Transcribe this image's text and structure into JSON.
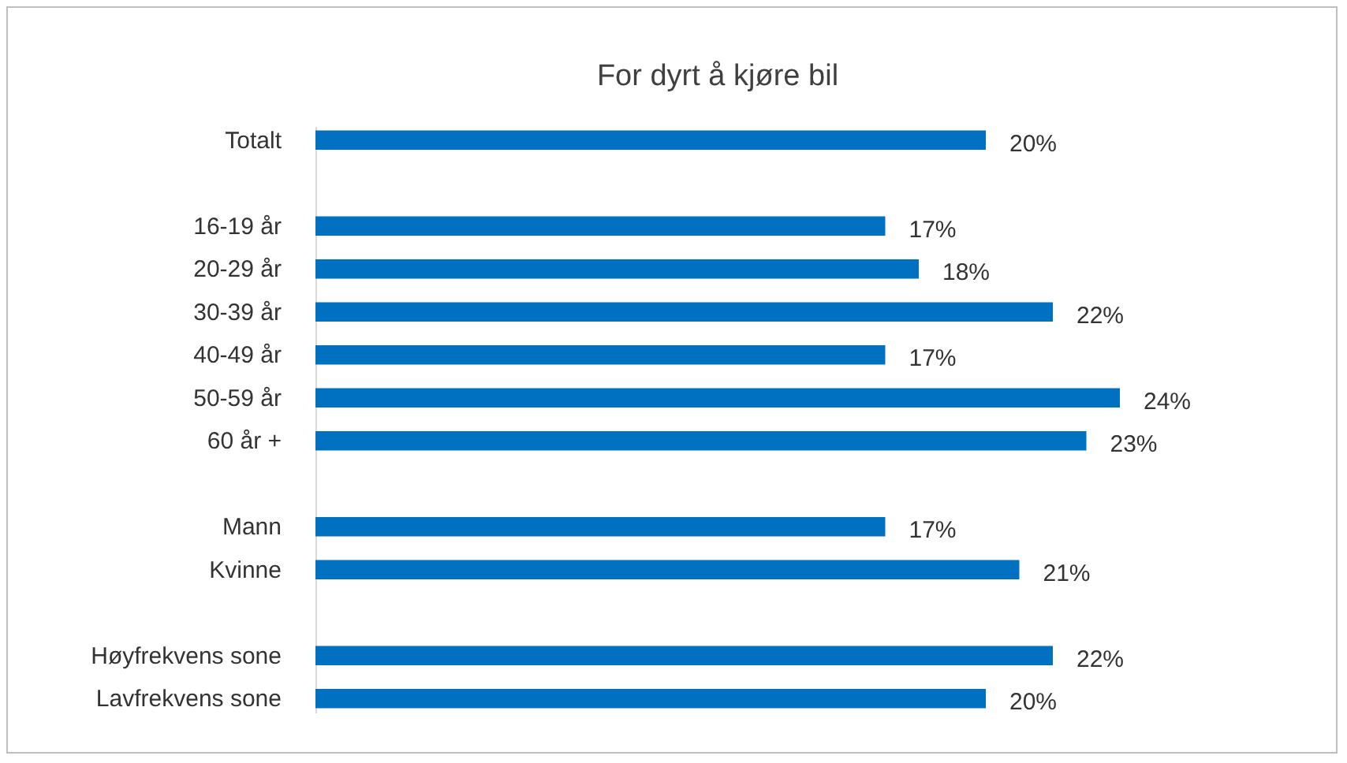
{
  "chart_data": {
    "type": "bar",
    "orientation": "horizontal",
    "title": "For dyrt å kjøre bil",
    "categories": [
      "Totalt",
      null,
      "16-19 år",
      "20-29 år",
      "30-39 år",
      "40-49 år",
      "50-59 år",
      "60 år +",
      null,
      "Mann",
      "Kvinne",
      null,
      "Høyfrekvens sone",
      "Lavfrekvens sone"
    ],
    "values": [
      20,
      null,
      17,
      18,
      22,
      17,
      24,
      23,
      null,
      17,
      21,
      null,
      22,
      20
    ],
    "value_labels": [
      "20%",
      null,
      "17%",
      "18%",
      "22%",
      "17%",
      "24%",
      "23%",
      null,
      "17%",
      "21%",
      null,
      "22%",
      "20%"
    ],
    "color": "#0070c0"
  }
}
